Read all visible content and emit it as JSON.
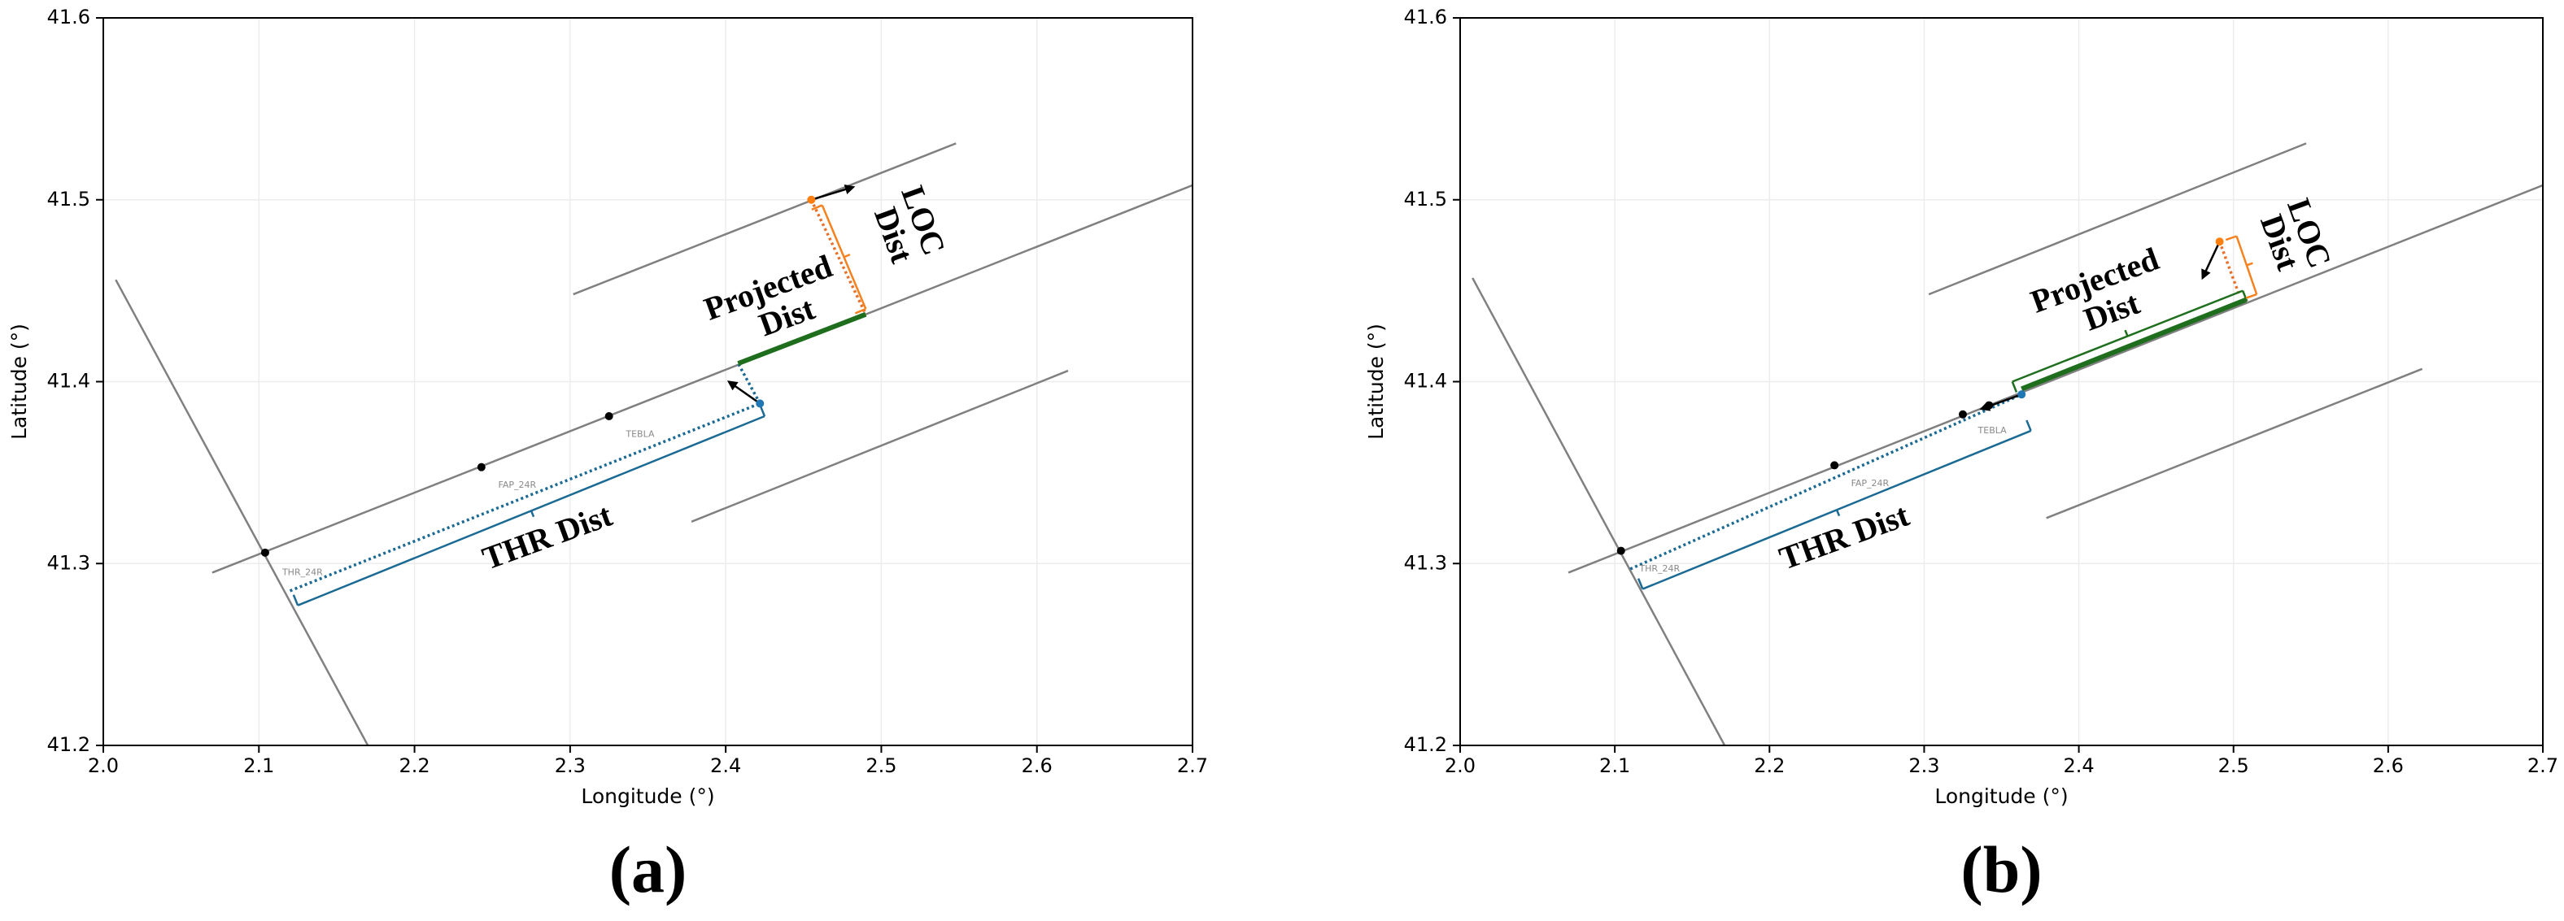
{
  "chart_data": [
    {
      "type": "line",
      "caption": "(a)",
      "xlabel": "Longitude (°)",
      "ylabel": "Latitude (°)",
      "xlim": [
        2.0,
        2.7
      ],
      "ylim": [
        41.2,
        41.6
      ],
      "xticks": [
        {
          "value": 2.0,
          "label": "2.0"
        },
        2.1,
        2.2,
        2.3,
        2.4,
        2.5,
        2.6,
        2.7
      ],
      "yticks": [
        41.2,
        41.3,
        41.4,
        41.5,
        41.6
      ],
      "grid": true,
      "series": [
        {
          "style": "solid",
          "color": "#808080",
          "x": [
            2.07,
            2.7
          ],
          "y": [
            41.295,
            41.508
          ]
        },
        {
          "style": "solid",
          "color": "#808080",
          "x": [
            2.302,
            2.548
          ],
          "y": [
            41.448,
            41.531
          ]
        },
        {
          "style": "solid",
          "color": "#808080",
          "x": [
            2.378,
            2.62
          ],
          "y": [
            41.323,
            41.406
          ]
        },
        {
          "style": "solid",
          "color": "#808080",
          "x": [
            2.008,
            2.17
          ],
          "y": [
            41.456,
            41.2
          ]
        },
        {
          "style": "dotted",
          "color": "#1b6a94",
          "x": [
            2.12,
            2.422
          ],
          "y": [
            41.285,
            41.388
          ]
        },
        {
          "style": "dotted",
          "color": "#1b6a94",
          "x": [
            2.422,
            2.408
          ],
          "y": [
            41.388,
            41.41
          ]
        },
        {
          "style": "thick",
          "color": "#1e6e1e",
          "x": [
            2.408,
            2.49
          ],
          "y": [
            41.41,
            41.437
          ]
        },
        {
          "style": "dotted",
          "color": "#e8702a",
          "x": [
            2.455,
            2.49
          ],
          "y": [
            41.5,
            41.437
          ]
        },
        {
          "style": "bracket",
          "color": "#1b6a94",
          "x": [
            2.125,
            2.425
          ],
          "y": [
            41.277,
            41.381
          ]
        },
        {
          "style": "bracket",
          "color": "#f5821f",
          "x": [
            2.49,
            2.462
          ],
          "y": [
            41.44,
            41.497
          ]
        },
        {
          "style": "arrow",
          "color": "#000000",
          "x": [
            2.422,
            2.402
          ],
          "y": [
            41.388,
            41.4
          ]
        },
        {
          "style": "arrow",
          "color": "#000000",
          "x": [
            2.455,
            2.482
          ],
          "y": [
            41.5,
            41.507
          ]
        },
        {
          "style": "dots",
          "color": "#000000",
          "x": [
            2.104,
            2.243,
            2.325
          ],
          "y": [
            41.306,
            41.353,
            41.381
          ]
        },
        {
          "style": "dots",
          "color": "#1f77b4",
          "x": [
            2.422
          ],
          "y": [
            41.388
          ]
        },
        {
          "style": "dots",
          "color": "#ff7f0e",
          "x": [
            2.455
          ],
          "y": [
            41.5
          ]
        }
      ],
      "annotations": [
        {
          "text": "THR_24R",
          "x": 2.128,
          "y": 41.295,
          "style": "small",
          "rotation": 0
        },
        {
          "text": "FAP_24R",
          "x": 2.266,
          "y": 41.343,
          "style": "small",
          "rotation": 0
        },
        {
          "text": "TEBLA",
          "x": 2.345,
          "y": 41.371,
          "style": "small",
          "rotation": 0
        },
        {
          "text": "THR Dist",
          "x": 2.286,
          "y": 41.313,
          "style": "bold",
          "rotation": -20
        },
        {
          "text": "Projected",
          "x": 2.428,
          "y": 41.45,
          "style": "bold",
          "rotation": -20
        },
        {
          "text": "Dist",
          "x": 2.44,
          "y": 41.434,
          "style": "bold",
          "rotation": -20
        },
        {
          "text": "LOC",
          "x": 2.525,
          "y": 41.488,
          "style": "bold",
          "rotation": 70
        },
        {
          "text": "Dist",
          "x": 2.506,
          "y": 41.48,
          "style": "bold",
          "rotation": 70
        }
      ]
    },
    {
      "type": "line",
      "caption": "(b)",
      "xlabel": "Longitude (°)",
      "ylabel": "Latitude (°)",
      "xlim": [
        2.0,
        2.7
      ],
      "ylim": [
        41.2,
        41.6
      ],
      "xticks": [
        {
          "value": 2.0,
          "label": "2.0"
        },
        2.1,
        2.2,
        2.3,
        2.4,
        2.5,
        2.6,
        2.7
      ],
      "yticks": [
        41.2,
        41.3,
        41.4,
        41.5,
        41.6
      ],
      "grid": true,
      "series": [
        {
          "style": "solid",
          "color": "#808080",
          "x": [
            2.07,
            2.7
          ],
          "y": [
            41.295,
            41.508
          ]
        },
        {
          "style": "solid",
          "color": "#808080",
          "x": [
            2.303,
            2.547
          ],
          "y": [
            41.448,
            41.531
          ]
        },
        {
          "style": "solid",
          "color": "#808080",
          "x": [
            2.379,
            2.622
          ],
          "y": [
            41.325,
            41.407
          ]
        },
        {
          "style": "solid",
          "color": "#808080",
          "x": [
            2.008,
            2.171
          ],
          "y": [
            41.457,
            41.2
          ]
        },
        {
          "style": "dotted",
          "color": "#1b6a94",
          "x": [
            2.11,
            2.363
          ],
          "y": [
            41.297,
            41.393
          ]
        },
        {
          "style": "thick",
          "color": "#1e6e1e",
          "x": [
            2.363,
            2.508
          ],
          "y": [
            41.396,
            41.445
          ]
        },
        {
          "style": "dotted",
          "color": "#e8702a",
          "x": [
            2.491,
            2.504
          ],
          "y": [
            41.477,
            41.447
          ]
        },
        {
          "style": "bracket",
          "color": "#1e6e1e",
          "x": [
            2.506,
            2.357
          ],
          "y": [
            41.45,
            41.4
          ]
        },
        {
          "style": "bracket",
          "color": "#1b6a94",
          "x": [
            2.118,
            2.369
          ],
          "y": [
            41.286,
            41.373
          ]
        },
        {
          "style": "bracket",
          "color": "#f5821f",
          "x": [
            2.515,
            2.502
          ],
          "y": [
            41.448,
            41.48
          ]
        },
        {
          "style": "arrow",
          "color": "#000000",
          "x": [
            2.491,
            2.48
          ],
          "y": [
            41.477,
            41.457
          ]
        },
        {
          "style": "arrow",
          "color": "#000000",
          "x": [
            2.363,
            2.337
          ],
          "y": [
            41.393,
            41.385
          ]
        },
        {
          "style": "dots",
          "color": "#000000",
          "x": [
            2.104,
            2.242,
            2.325,
            2.342
          ],
          "y": [
            41.307,
            41.354,
            41.382,
            41.387
          ]
        },
        {
          "style": "dots",
          "color": "#1f77b4",
          "x": [
            2.363
          ],
          "y": [
            41.393
          ]
        },
        {
          "style": "dots",
          "color": "#ff7f0e",
          "x": [
            2.491
          ],
          "y": [
            41.477
          ]
        }
      ],
      "annotations": [
        {
          "text": "THR_24R",
          "x": 2.129,
          "y": 41.297,
          "style": "small",
          "rotation": 0
        },
        {
          "text": "FAP_24R",
          "x": 2.265,
          "y": 41.344,
          "style": "small",
          "rotation": 0
        },
        {
          "text": "TEBLA",
          "x": 2.344,
          "y": 41.373,
          "style": "small",
          "rotation": 0
        },
        {
          "text": "THR Dist",
          "x": 2.249,
          "y": 41.313,
          "style": "bold",
          "rotation": -20
        },
        {
          "text": "Projected",
          "x": 2.411,
          "y": 41.454,
          "style": "bold",
          "rotation": -20
        },
        {
          "text": "Dist",
          "x": 2.422,
          "y": 41.437,
          "style": "bold",
          "rotation": -20
        },
        {
          "text": "LOC",
          "x": 2.547,
          "y": 41.481,
          "style": "bold",
          "rotation": 70
        },
        {
          "text": "Dist",
          "x": 2.528,
          "y": 41.476,
          "style": "bold",
          "rotation": 70
        }
      ]
    }
  ]
}
